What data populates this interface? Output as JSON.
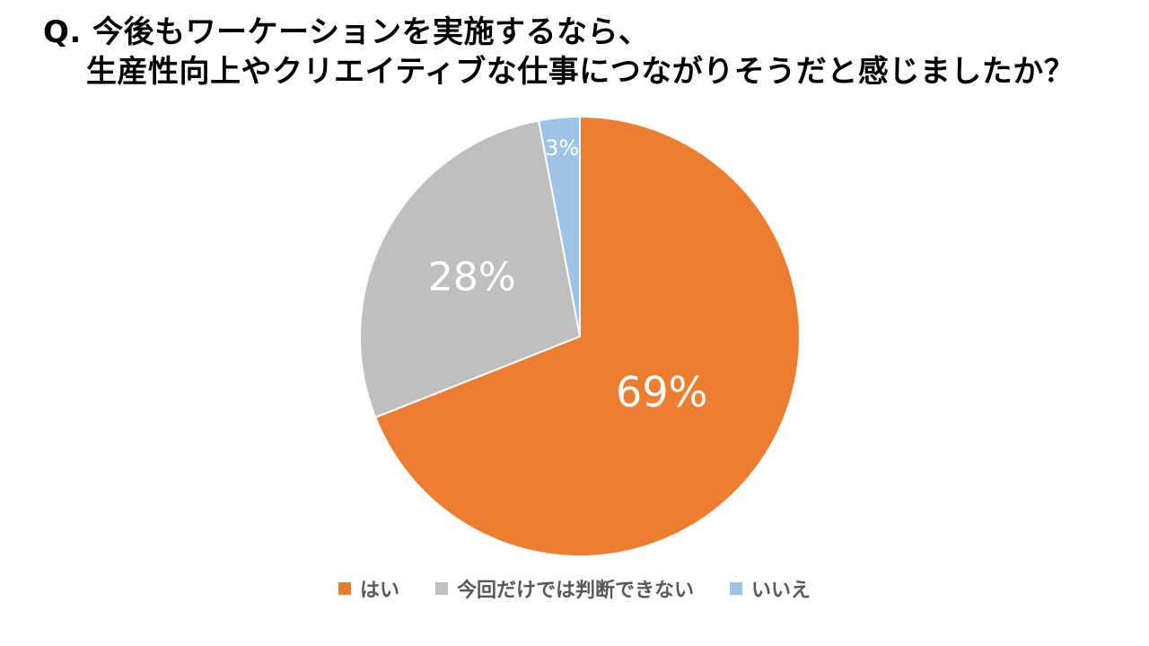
{
  "title": {
    "line1": "Q. 今後もワーケーションを実施するなら、",
    "line2": "生産性向上やクリエイティブな仕事につながりそうだと感じましたか？"
  },
  "chart_data": {
    "type": "pie",
    "title": "Q. 今後もワーケーションを実施するなら、 生産性向上やクリエイティブな仕事につながりそうだと感じましたか？",
    "categories": [
      "はい",
      "今回だけでは判断できない",
      "いいえ"
    ],
    "values": [
      69,
      28,
      3
    ],
    "labels": [
      "69%",
      "28%",
      "3%"
    ],
    "colors": [
      "#ED7D31",
      "#BFBFBF",
      "#9DC3E6"
    ],
    "start_angle": "12 o'clock",
    "direction": "clockwise",
    "legend_position": "bottom"
  },
  "legend": {
    "items": [
      {
        "label": "はい",
        "color": "#ED7D31"
      },
      {
        "label": "今回だけでは判断できない",
        "color": "#BFBFBF"
      },
      {
        "label": "いいえ",
        "color": "#9DC3E6"
      }
    ]
  }
}
